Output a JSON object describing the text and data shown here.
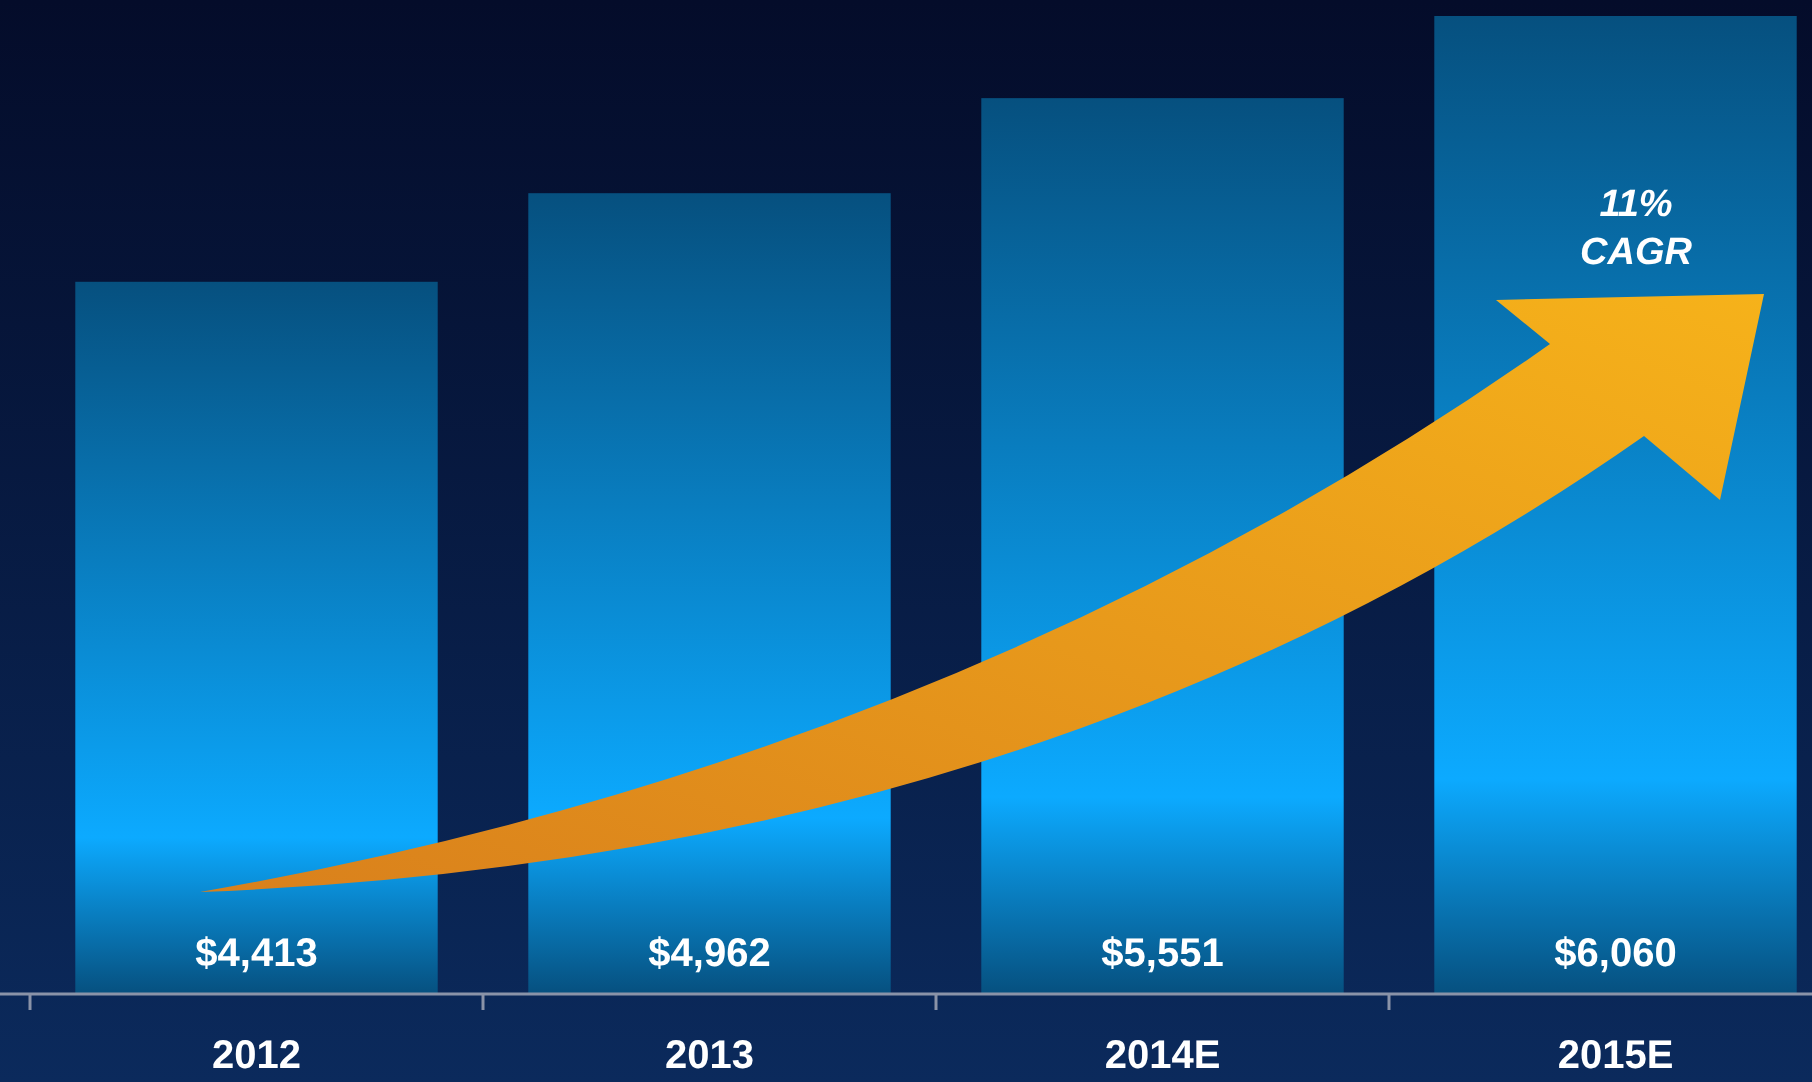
{
  "chart_data": {
    "type": "bar",
    "categories": [
      "2012",
      "2013",
      "2014E",
      "2015E"
    ],
    "values": [
      4413,
      4962,
      5551,
      6060
    ],
    "value_labels": [
      "$4,413",
      "$4,962",
      "$5,551",
      "$6,060"
    ],
    "color": "#0a8ee0",
    "annotations": [
      "11%\nCAGR"
    ]
  }
}
